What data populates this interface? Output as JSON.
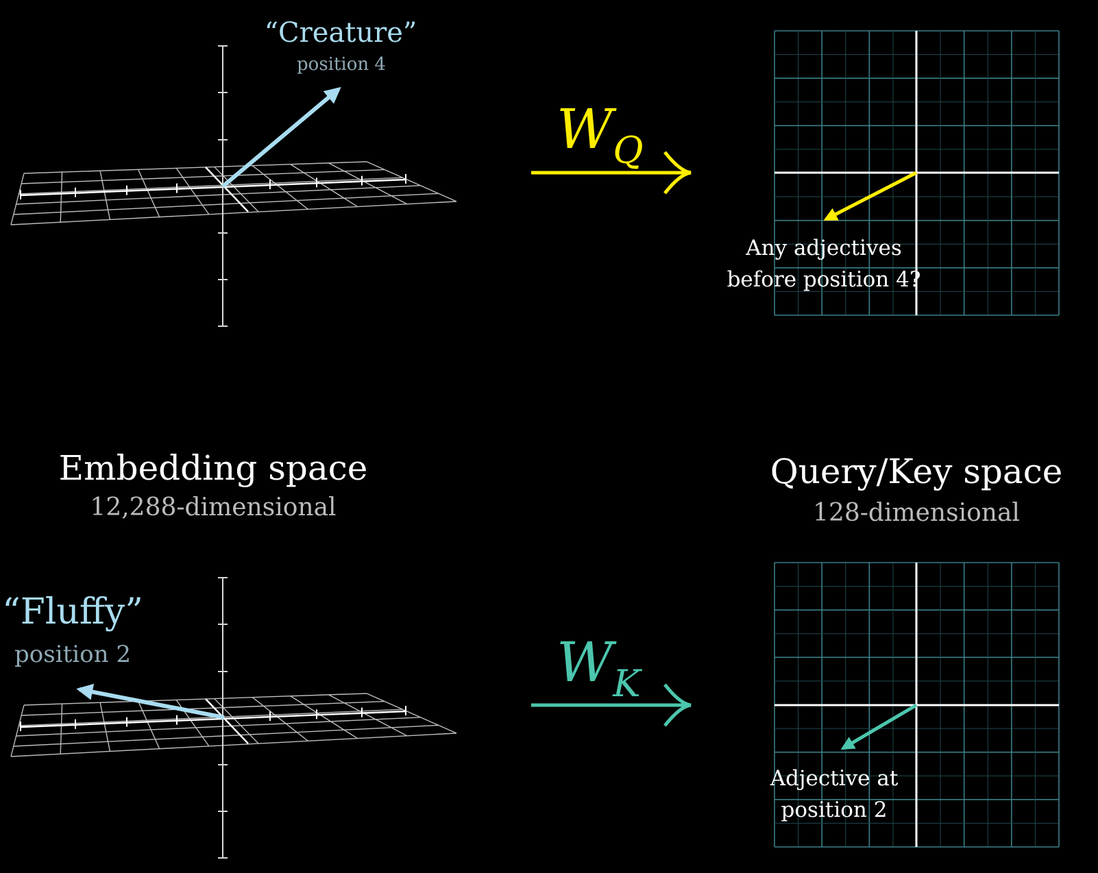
{
  "colors": {
    "background": "#000000",
    "creature": "#a9dcf0",
    "fluffy": "#a9dcf0",
    "query": "#ffee00",
    "key": "#4cc6ad",
    "grid": "#2f6f78",
    "axis": "#ffffff",
    "label": "#ffffff",
    "subtitle": "#bbbbbb"
  },
  "embedding": {
    "title": "Embedding space",
    "subtitle": "12,288-dimensional"
  },
  "qk_space": {
    "title": "Query/Key space",
    "subtitle": "128-dimensional"
  },
  "query_row": {
    "word": "“Creature”",
    "position": "position 4",
    "matrix_base": "W",
    "matrix_sub": "Q",
    "annotation_line1": "Any adjectives",
    "annotation_line2": "before position 4?"
  },
  "key_row": {
    "word": "“Fluffy”",
    "position": "position 2",
    "matrix_base": "W",
    "matrix_sub": "K",
    "annotation_line1": "Adjective at",
    "annotation_line2": "position 2"
  }
}
